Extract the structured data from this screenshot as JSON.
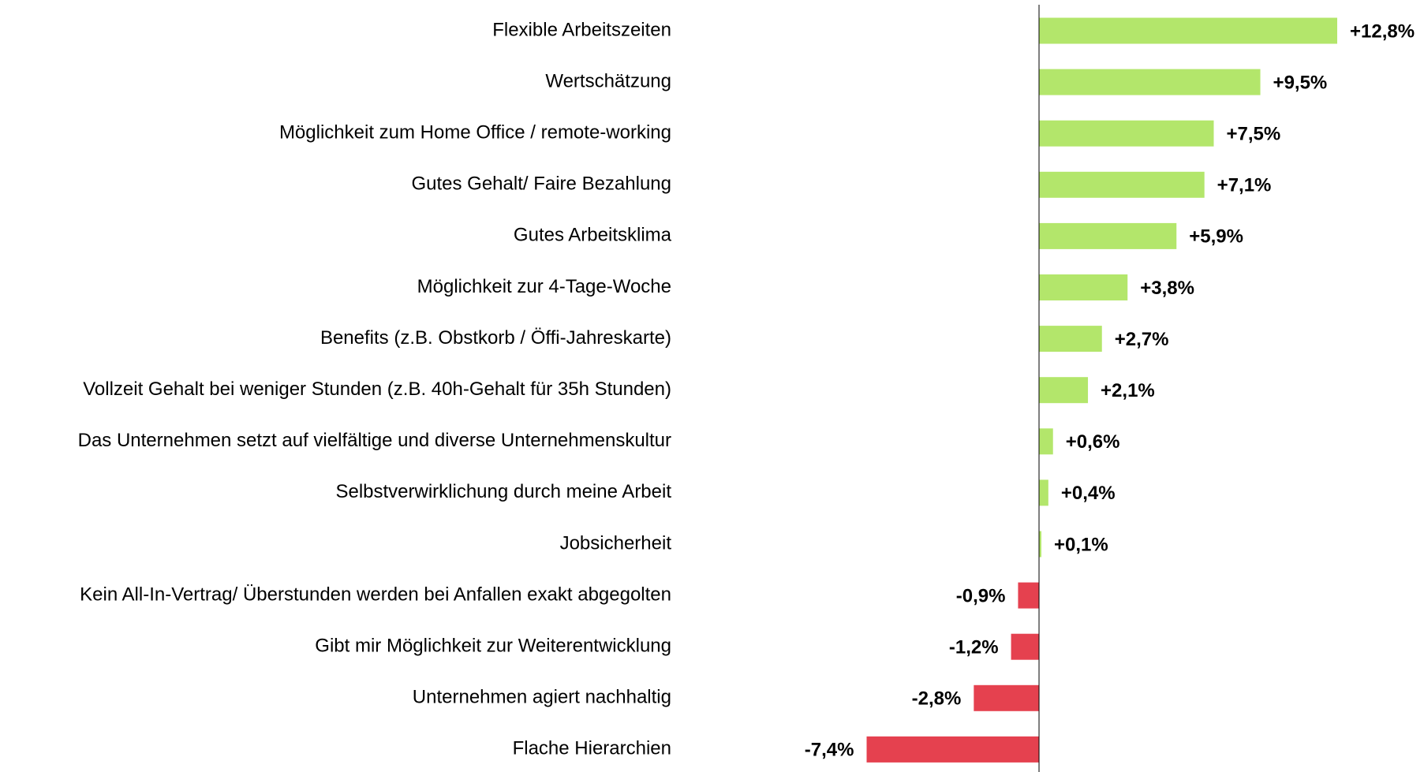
{
  "chart_data": {
    "type": "barh",
    "categories": [
      "Flexible Arbeitszeiten",
      "Wertschätzung",
      "Möglichkeit zum Home Office / remote-working",
      "Gutes Gehalt/ Faire Bezahlung",
      "Gutes Arbeitsklima",
      "Möglichkeit zur 4-Tage-Woche",
      "Benefits (z.B. Obstkorb / Öffi-Jahreskarte)",
      "Vollzeit Gehalt bei weniger Stunden (z.B. 40h-Gehalt für 35h Stunden)",
      "Das Unternehmen setzt auf vielfältige und diverse Unternehmenskultur",
      "Selbstverwirklichung durch meine Arbeit",
      "Jobsicherheit",
      "Kein All-In-Vertrag/ Überstunden werden bei Anfallen exakt abgegolten",
      "Gibt mir Möglichkeit zur Weiterentwicklung",
      "Unternehmen agiert nachhaltig",
      "Flache Hierarchien"
    ],
    "values": [
      12.8,
      9.5,
      7.5,
      7.1,
      5.9,
      3.8,
      2.7,
      2.1,
      0.6,
      0.4,
      0.1,
      -0.9,
      -1.2,
      -2.8,
      -7.4
    ],
    "value_labels": [
      "+12,8%",
      "+9,5%",
      "+7,5%",
      "+7,1%",
      "+5,9%",
      "+3,8%",
      "+2,7%",
      "+2,1%",
      "+0,6%",
      "+0,4%",
      "+0,1%",
      "-0,9%",
      "-1,2%",
      "-2,8%",
      "-7,4%"
    ],
    "positive_color": "#b3e66b",
    "negative_color": "#e5414f"
  }
}
